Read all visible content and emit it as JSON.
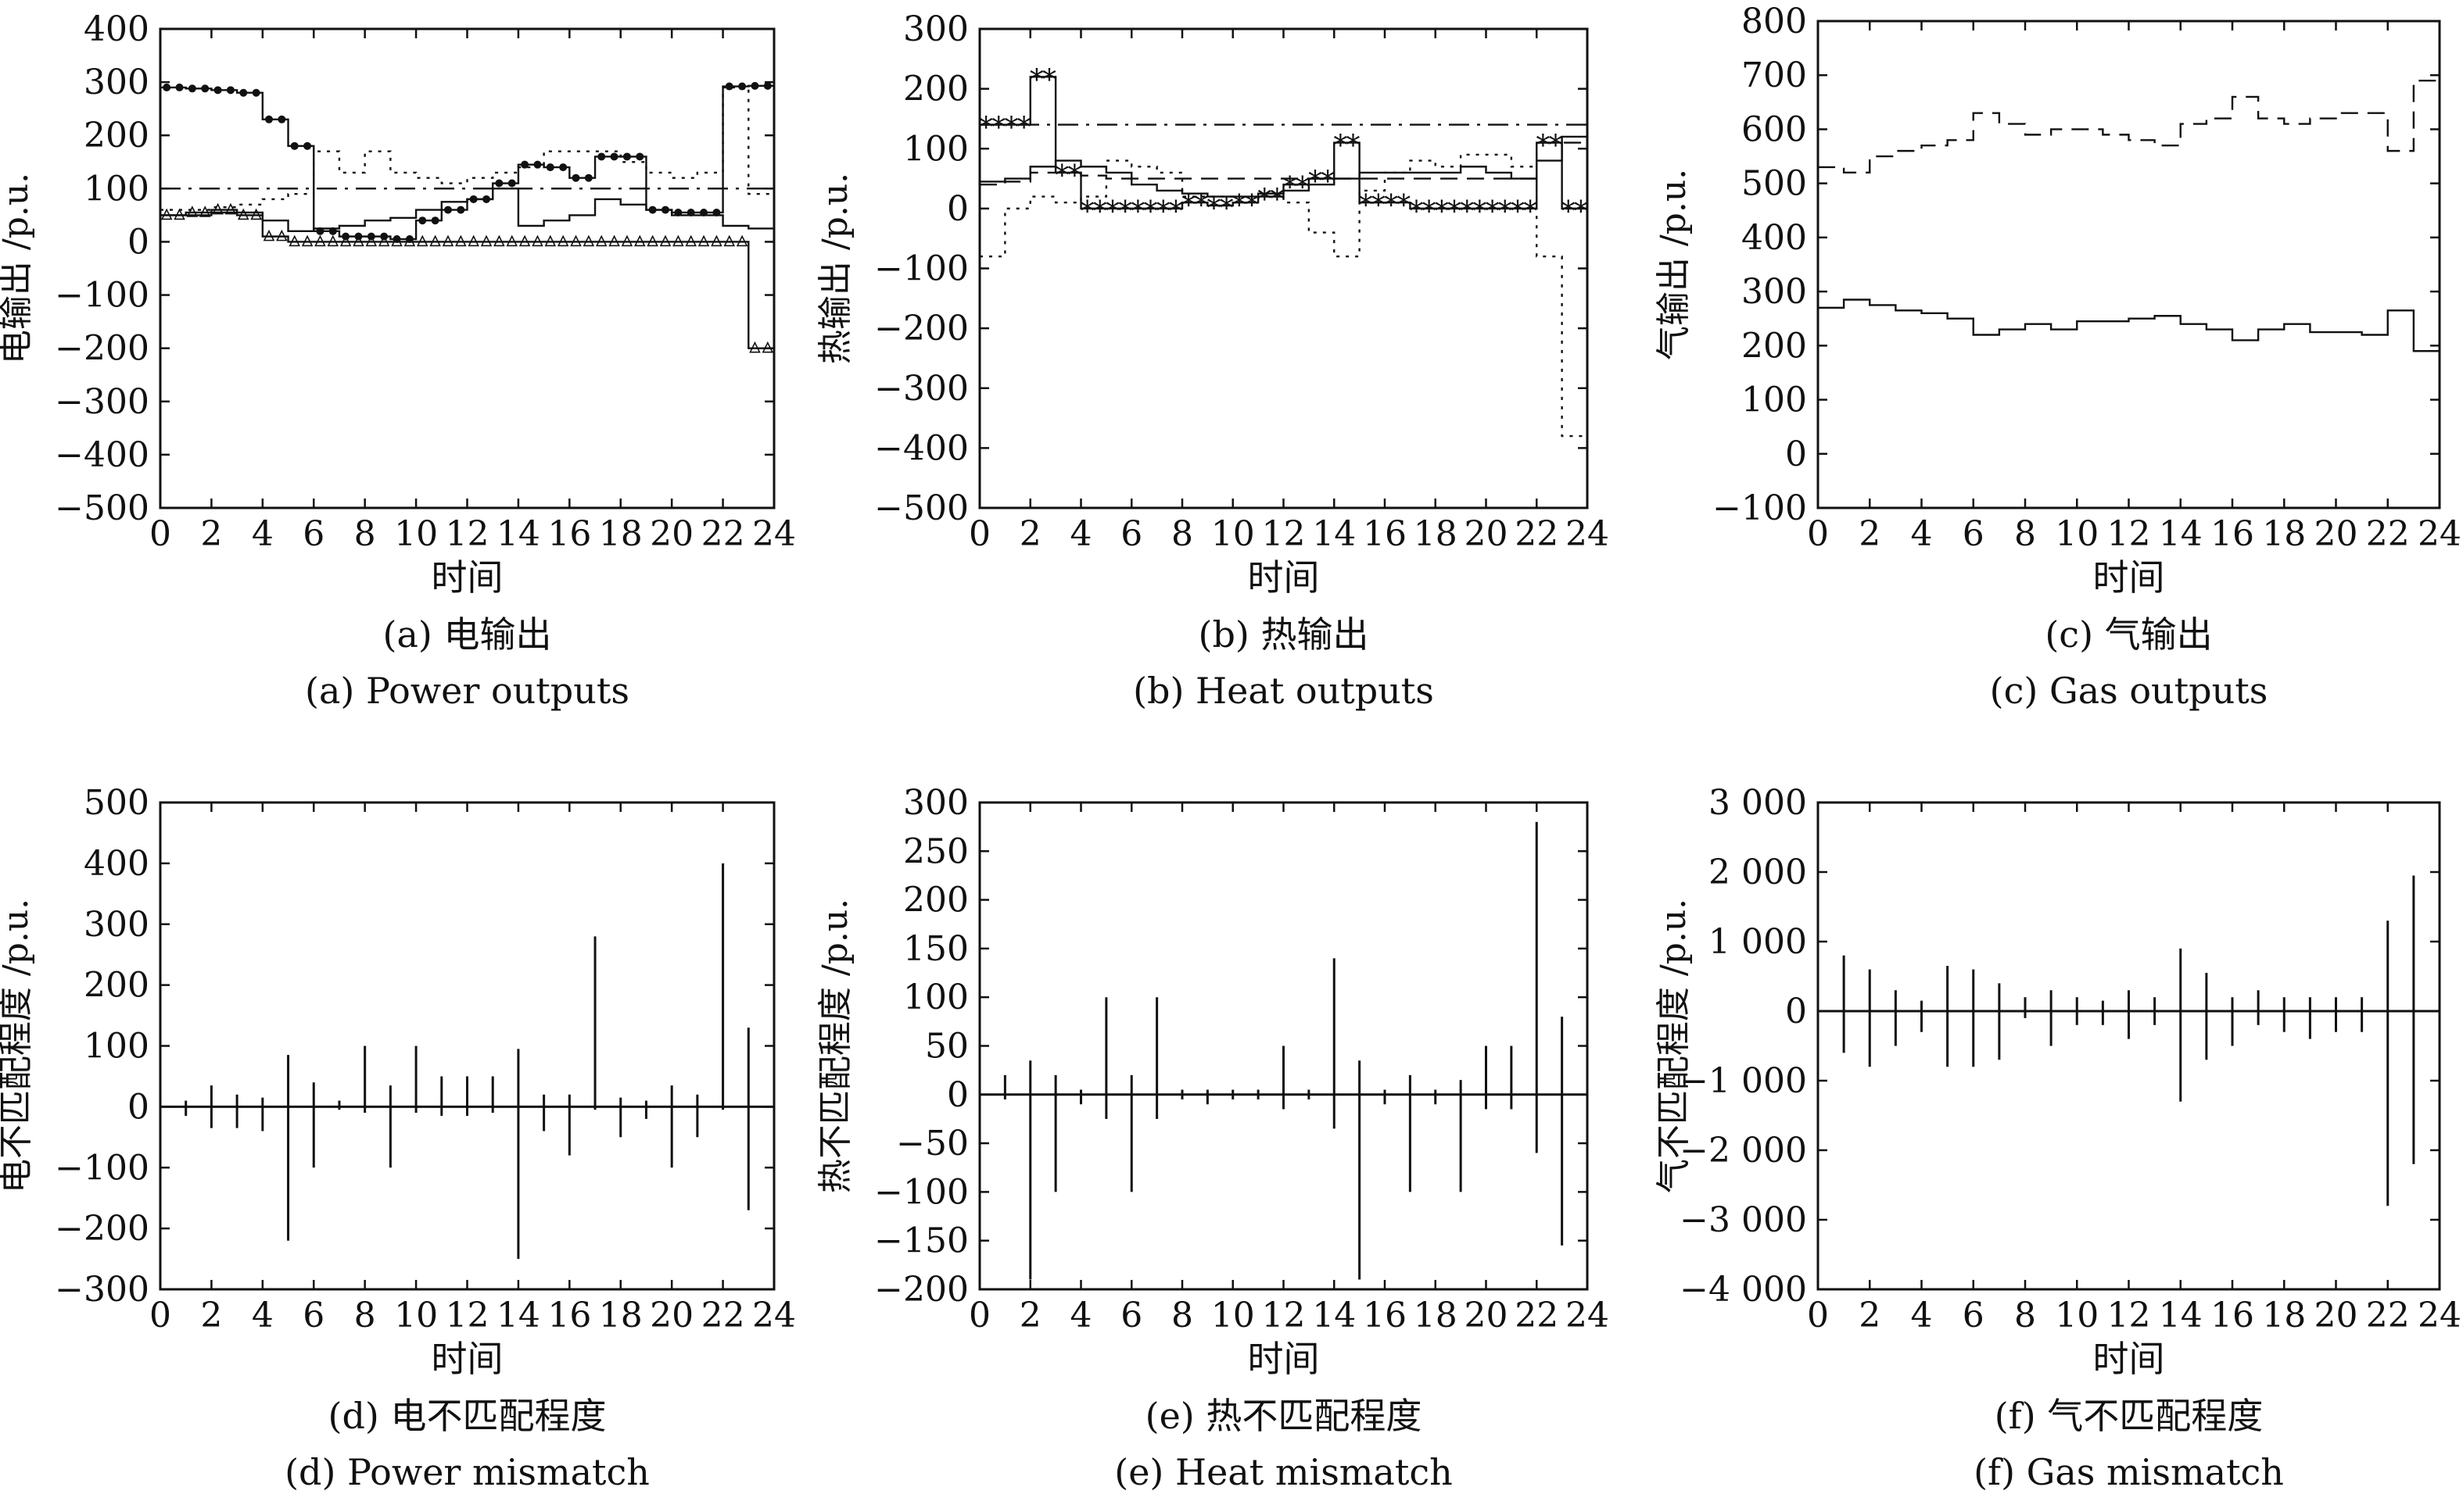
{
  "chart_data": [
    {
      "panel": "a",
      "type": "line",
      "caption_cn": "(a) 电输出",
      "caption_en": "(a) Power outputs",
      "xlabel": "时间",
      "ylabel": "电输出 /p.u.",
      "xlim": [
        0,
        24
      ],
      "ylim": [
        -500,
        400
      ],
      "xticks": [
        0,
        2,
        4,
        6,
        8,
        10,
        12,
        14,
        16,
        18,
        20,
        22,
        24
      ],
      "yticks": [
        -500,
        -400,
        -300,
        -200,
        -100,
        0,
        100,
        200,
        300,
        400
      ],
      "series": [
        {
          "style": "solid-dot",
          "x": [
            0,
            1,
            2,
            3,
            4,
            5,
            6,
            7,
            8,
            9,
            10,
            11,
            12,
            13,
            14,
            15,
            16,
            17,
            18,
            19,
            20,
            21,
            22,
            23,
            24
          ],
          "values": [
            290,
            288,
            285,
            280,
            230,
            180,
            20,
            10,
            10,
            5,
            40,
            60,
            80,
            110,
            145,
            140,
            120,
            160,
            160,
            60,
            55,
            55,
            292,
            293,
            80
          ]
        },
        {
          "style": "dashdot",
          "x": [
            0,
            1,
            2,
            3,
            4,
            5,
            6,
            7,
            8,
            9,
            10,
            11,
            12,
            13,
            14,
            15,
            16,
            17,
            18,
            19,
            20,
            21,
            22,
            23,
            24
          ],
          "values": [
            100,
            100,
            100,
            100,
            100,
            100,
            100,
            100,
            100,
            100,
            100,
            100,
            100,
            100,
            100,
            100,
            100,
            100,
            100,
            100,
            100,
            100,
            100,
            100,
            100
          ]
        },
        {
          "style": "dotted",
          "x": [
            0,
            1,
            2,
            3,
            4,
            5,
            6,
            7,
            8,
            9,
            10,
            11,
            12,
            13,
            14,
            15,
            16,
            17,
            18,
            19,
            20,
            21,
            22,
            23,
            24
          ],
          "values": [
            60,
            60,
            65,
            70,
            80,
            90,
            170,
            130,
            170,
            130,
            120,
            110,
            120,
            130,
            140,
            170,
            170,
            170,
            150,
            130,
            120,
            130,
            290,
            90,
            90
          ]
        },
        {
          "style": "solid",
          "x": [
            0,
            1,
            2,
            3,
            4,
            5,
            6,
            7,
            8,
            9,
            10,
            11,
            12,
            13,
            14,
            15,
            16,
            17,
            18,
            19,
            20,
            21,
            22,
            23,
            24
          ],
          "values": [
            50,
            50,
            55,
            55,
            40,
            20,
            25,
            30,
            40,
            45,
            60,
            75,
            80,
            100,
            30,
            40,
            50,
            80,
            70,
            60,
            50,
            50,
            30,
            25,
            25
          ]
        },
        {
          "style": "triangle",
          "x": [
            0,
            1,
            2,
            3,
            4,
            5,
            6,
            7,
            8,
            9,
            10,
            11,
            12,
            13,
            14,
            15,
            16,
            17,
            18,
            19,
            20,
            21,
            22,
            23,
            24
          ],
          "values": [
            50,
            55,
            60,
            50,
            10,
            0,
            0,
            0,
            0,
            0,
            0,
            0,
            0,
            0,
            0,
            0,
            0,
            0,
            0,
            0,
            0,
            0,
            0,
            -200,
            -200
          ]
        }
      ]
    },
    {
      "panel": "b",
      "type": "line",
      "caption_cn": "(b) 热输出",
      "caption_en": "(b) Heat outputs",
      "xlabel": "时间",
      "ylabel": "热输出 /p.u.",
      "xlim": [
        0,
        24
      ],
      "ylim": [
        -500,
        300
      ],
      "xticks": [
        0,
        2,
        4,
        6,
        8,
        10,
        12,
        14,
        16,
        18,
        20,
        22,
        24
      ],
      "yticks": [
        -500,
        -400,
        -300,
        -200,
        -100,
        0,
        100,
        200,
        300
      ],
      "series": [
        {
          "style": "star",
          "x": [
            0,
            1,
            2,
            3,
            4,
            5,
            6,
            7,
            8,
            9,
            10,
            11,
            12,
            13,
            14,
            15,
            16,
            17,
            18,
            19,
            20,
            21,
            22,
            23,
            24
          ],
          "values": [
            140,
            140,
            220,
            60,
            0,
            0,
            0,
            0,
            10,
            5,
            10,
            20,
            40,
            50,
            110,
            10,
            10,
            0,
            0,
            0,
            0,
            0,
            110,
            0,
            0
          ]
        },
        {
          "style": "dashdot",
          "x": [
            0,
            1,
            2,
            3,
            4,
            5,
            6,
            7,
            8,
            9,
            10,
            11,
            12,
            13,
            14,
            15,
            16,
            17,
            18,
            19,
            20,
            21,
            22,
            23,
            24
          ],
          "values": [
            140,
            140,
            140,
            140,
            140,
            140,
            140,
            140,
            140,
            140,
            140,
            140,
            140,
            140,
            140,
            140,
            140,
            140,
            140,
            140,
            140,
            140,
            140,
            140,
            140
          ]
        },
        {
          "style": "dashed",
          "x": [
            0,
            1,
            2,
            3,
            4,
            5,
            6,
            7,
            8,
            9,
            10,
            11,
            12,
            13,
            14,
            15,
            16,
            17,
            18,
            19,
            20,
            21,
            22,
            23,
            24
          ],
          "values": [
            40,
            45,
            60,
            60,
            55,
            50,
            50,
            50,
            50,
            50,
            50,
            50,
            50,
            50,
            50,
            50,
            50,
            50,
            50,
            50,
            50,
            50,
            110,
            110,
            110
          ]
        },
        {
          "style": "solid",
          "x": [
            0,
            1,
            2,
            3,
            4,
            5,
            6,
            7,
            8,
            9,
            10,
            11,
            12,
            13,
            14,
            15,
            16,
            17,
            18,
            19,
            20,
            21,
            22,
            23,
            24
          ],
          "values": [
            45,
            50,
            70,
            80,
            70,
            60,
            40,
            30,
            25,
            20,
            20,
            25,
            30,
            40,
            50,
            60,
            60,
            60,
            60,
            70,
            60,
            50,
            80,
            120,
            120
          ]
        },
        {
          "style": "dotted",
          "x": [
            0,
            1,
            2,
            3,
            4,
            5,
            6,
            7,
            8,
            9,
            10,
            11,
            12,
            13,
            14,
            15,
            16,
            17,
            18,
            19,
            20,
            21,
            22,
            23,
            24
          ],
          "values": [
            -80,
            0,
            20,
            10,
            20,
            80,
            70,
            60,
            20,
            20,
            10,
            20,
            10,
            -40,
            -80,
            30,
            60,
            80,
            70,
            90,
            90,
            70,
            -80,
            -380,
            -380
          ]
        }
      ]
    },
    {
      "panel": "c",
      "type": "line",
      "caption_cn": "(c) 气输出",
      "caption_en": "(c) Gas outputs",
      "xlabel": "时间",
      "ylabel": "气输出 /p.u.",
      "xlim": [
        0,
        24
      ],
      "ylim": [
        -100,
        800
      ],
      "xticks": [
        0,
        2,
        4,
        6,
        8,
        10,
        12,
        14,
        16,
        18,
        20,
        22,
        24
      ],
      "yticks": [
        -100,
        0,
        100,
        200,
        300,
        400,
        500,
        600,
        700,
        800
      ],
      "series": [
        {
          "style": "dashed",
          "x": [
            0,
            1,
            2,
            3,
            4,
            5,
            6,
            7,
            8,
            9,
            10,
            11,
            12,
            13,
            14,
            15,
            16,
            17,
            18,
            19,
            20,
            21,
            22,
            23,
            24
          ],
          "values": [
            530,
            520,
            550,
            560,
            570,
            580,
            630,
            610,
            590,
            600,
            600,
            590,
            580,
            570,
            610,
            620,
            660,
            620,
            610,
            620,
            630,
            630,
            560,
            690,
            690
          ]
        },
        {
          "style": "solid",
          "x": [
            0,
            1,
            2,
            3,
            4,
            5,
            6,
            7,
            8,
            9,
            10,
            11,
            12,
            13,
            14,
            15,
            16,
            17,
            18,
            19,
            20,
            21,
            22,
            23,
            24
          ],
          "values": [
            270,
            285,
            275,
            265,
            260,
            250,
            220,
            230,
            240,
            230,
            245,
            245,
            250,
            255,
            240,
            230,
            210,
            230,
            240,
            225,
            225,
            220,
            265,
            190,
            190
          ]
        }
      ]
    },
    {
      "panel": "d",
      "type": "bar",
      "caption_cn": "(d) 电不匹配程度",
      "caption_en": "(d) Power mismatch",
      "xlabel": "时间",
      "ylabel": "电不匹配程度 /p.u.",
      "xlim": [
        0,
        24
      ],
      "ylim": [
        -300,
        500
      ],
      "xticks": [
        0,
        2,
        4,
        6,
        8,
        10,
        12,
        14,
        16,
        18,
        20,
        22,
        24
      ],
      "yticks": [
        -300,
        -200,
        -100,
        0,
        100,
        200,
        300,
        400,
        500
      ],
      "x": [
        1,
        2,
        3,
        4,
        5,
        6,
        7,
        8,
        9,
        10,
        11,
        12,
        13,
        14,
        15,
        16,
        17,
        18,
        19,
        20,
        21,
        22,
        23
      ],
      "max": [
        10,
        35,
        20,
        15,
        85,
        40,
        10,
        100,
        35,
        100,
        50,
        50,
        50,
        95,
        20,
        20,
        280,
        15,
        10,
        35,
        20,
        400,
        130
      ],
      "min": [
        -15,
        -35,
        -35,
        -40,
        -220,
        -100,
        -5,
        -10,
        -100,
        -10,
        -15,
        -15,
        -10,
        -250,
        -40,
        -80,
        -5,
        -50,
        -20,
        -100,
        -50,
        -5,
        -170
      ]
    },
    {
      "panel": "e",
      "type": "bar",
      "caption_cn": "(e) 热不匹配程度",
      "caption_en": "(e) Heat mismatch",
      "xlabel": "时间",
      "ylabel": "热不匹配程度 /p.u.",
      "xlim": [
        0,
        24
      ],
      "ylim": [
        -200,
        300
      ],
      "xticks": [
        0,
        2,
        4,
        6,
        8,
        10,
        12,
        14,
        16,
        18,
        20,
        22,
        24
      ],
      "yticks": [
        -200,
        -150,
        -100,
        -50,
        0,
        50,
        100,
        150,
        200,
        250,
        300
      ],
      "x": [
        1,
        2,
        3,
        4,
        5,
        6,
        7,
        8,
        9,
        10,
        11,
        12,
        13,
        14,
        15,
        16,
        17,
        18,
        19,
        20,
        21,
        22,
        23
      ],
      "max": [
        20,
        35,
        20,
        5,
        100,
        20,
        100,
        5,
        5,
        5,
        5,
        50,
        5,
        140,
        35,
        5,
        20,
        5,
        15,
        50,
        50,
        280,
        80
      ],
      "min": [
        -5,
        -190,
        -100,
        -10,
        -25,
        -100,
        -25,
        -5,
        -10,
        -5,
        -5,
        -15,
        -5,
        -35,
        -190,
        -10,
        -100,
        -10,
        -100,
        -15,
        -15,
        -60,
        -155
      ]
    },
    {
      "panel": "f",
      "type": "bar",
      "caption_cn": "(f) 气不匹配程度",
      "caption_en": "(f) Gas mismatch",
      "xlabel": "时间",
      "ylabel": "气不匹配程度 /p.u.",
      "xlim": [
        0,
        24
      ],
      "ylim": [
        -4000,
        3000
      ],
      "xticks": [
        0,
        2,
        4,
        6,
        8,
        10,
        12,
        14,
        16,
        18,
        20,
        22,
        24
      ],
      "yticks": [
        -4000,
        -3000,
        -2000,
        -1000,
        0,
        1000,
        2000,
        3000
      ],
      "yticklabels": [
        "−4 000",
        "−3 000",
        "−2 000",
        "−1 000",
        "0",
        "1 000",
        "2 000",
        "3 000"
      ],
      "x": [
        1,
        2,
        3,
        4,
        5,
        6,
        7,
        8,
        9,
        10,
        11,
        12,
        13,
        14,
        15,
        16,
        17,
        18,
        19,
        20,
        21,
        22,
        23
      ],
      "max": [
        800,
        600,
        300,
        150,
        650,
        600,
        400,
        200,
        300,
        200,
        150,
        300,
        200,
        900,
        550,
        200,
        300,
        200,
        200,
        200,
        200,
        1300,
        1950
      ],
      "min": [
        -600,
        -800,
        -500,
        -300,
        -800,
        -800,
        -700,
        -100,
        -500,
        -200,
        -200,
        -400,
        -200,
        -1300,
        -700,
        -500,
        -200,
        -300,
        -400,
        -300,
        -300,
        -2800,
        -2200
      ]
    }
  ]
}
